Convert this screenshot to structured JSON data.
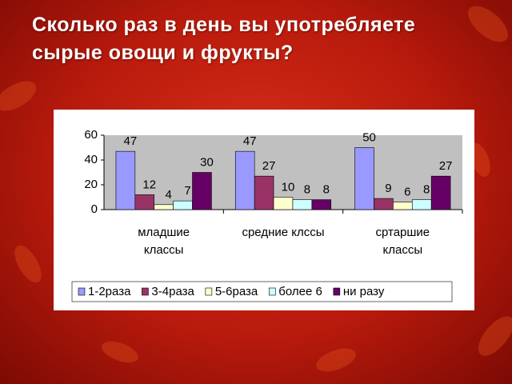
{
  "title": "Сколько раз в день вы употребляете сырые овощи и фрукты?",
  "chart_data": {
    "type": "bar",
    "categories": [
      "младшие классы",
      "средние клссы",
      "сртаршие классы"
    ],
    "series": [
      {
        "name": "1-2раза",
        "color": "#9999ff",
        "values": [
          47,
          47,
          50
        ]
      },
      {
        "name": "3-4раза",
        "color": "#993366",
        "values": [
          12,
          27,
          9
        ]
      },
      {
        "name": "5-6раза",
        "color": "#ffffcc",
        "values": [
          4,
          10,
          6
        ]
      },
      {
        "name": "более 6",
        "color": "#ccffff",
        "values": [
          7,
          8,
          8
        ]
      },
      {
        "name": "ни разу",
        "color": "#660066",
        "values": [
          30,
          8,
          27
        ]
      }
    ],
    "ylim": [
      0,
      60
    ],
    "yticks": [
      0,
      20,
      40,
      60
    ],
    "grid": false,
    "legend": "bottom"
  }
}
